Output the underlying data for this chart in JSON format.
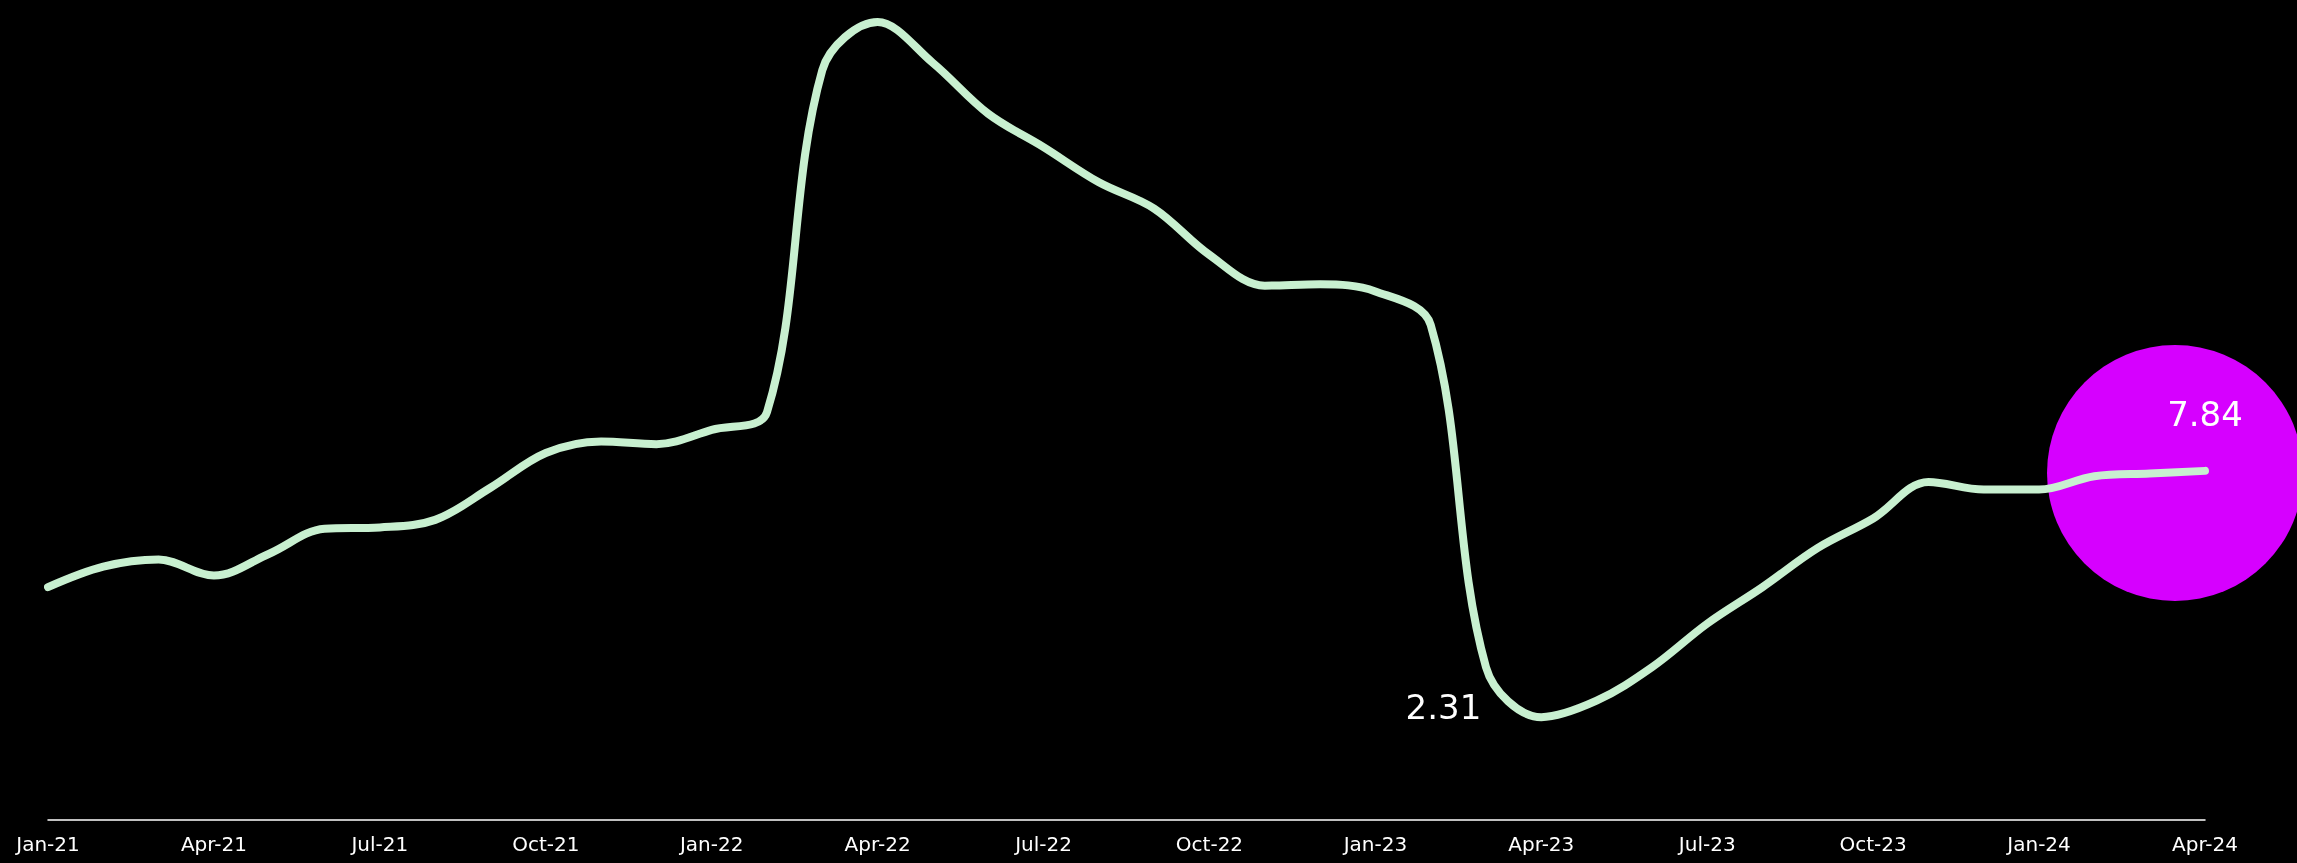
{
  "chart_data": {
    "type": "line",
    "categories": [
      "Jan-21",
      null,
      null,
      "Apr-21",
      null,
      null,
      "Jul-21",
      null,
      null,
      "Oct-21",
      null,
      null,
      "Jan-22",
      null,
      null,
      "Apr-22",
      null,
      null,
      "Jul-22",
      null,
      null,
      "Oct-22",
      null,
      null,
      "Jan-23",
      null,
      null,
      "Apr-23",
      null,
      null,
      "Jul-23",
      null,
      null,
      "Oct-23",
      null,
      null,
      "Jan-24",
      null,
      null,
      "Apr-24"
    ],
    "series": [
      {
        "color": "#c8f0d0",
        "values": [
          5.23,
          5.69,
          5.85,
          5.49,
          5.98,
          6.54,
          6.57,
          6.74,
          7.46,
          8.24,
          8.5,
          8.44,
          8.76,
          9.16,
          16.84,
          17.92,
          17.0,
          15.86,
          15.11,
          14.32,
          13.73,
          12.69,
          12.0,
          12.03,
          11.87,
          11.12,
          3.43,
          2.31,
          2.68,
          3.43,
          4.41,
          5.23,
          6.11,
          6.77,
          7.59,
          7.42,
          7.42,
          7.72,
          7.78,
          7.84
        ],
        "value_labels": [
          null,
          null,
          null,
          null,
          null,
          null,
          null,
          null,
          null,
          null,
          null,
          null,
          null,
          null,
          null,
          null,
          null,
          null,
          null,
          null,
          null,
          null,
          null,
          null,
          null,
          null,
          null,
          "2.31",
          null,
          null,
          null,
          null,
          null,
          null,
          null,
          null,
          null,
          null,
          null,
          "7.84"
        ]
      }
    ],
    "marker": "none",
    "line_style": "solid",
    "grid": false
  }
}
